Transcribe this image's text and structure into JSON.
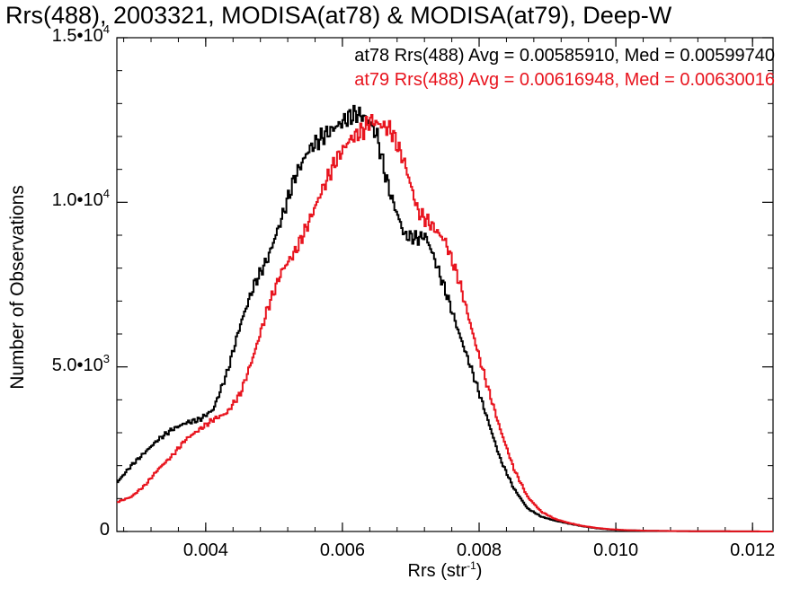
{
  "chart_data": {
    "type": "line",
    "title": "Rrs(488), 2003321, MODISA(at78) & MODISA(at79), Deep-W",
    "xlabel": "Rrs (str",
    "xlabel_exponent": "-1",
    "xlabel_close": ")",
    "ylabel": "Number of Observations",
    "xlim": [
      0.0027,
      0.0123
    ],
    "ylim": [
      0,
      15000
    ],
    "x_ticks": [
      0.004,
      0.006,
      0.008,
      0.01,
      0.012
    ],
    "x_tick_labels": [
      "0.004",
      "0.006",
      "0.008",
      "0.010",
      "0.012"
    ],
    "y_ticks": [
      {
        "value": 0,
        "mantissa": "0",
        "exponent": ""
      },
      {
        "value": 5000,
        "mantissa": "5.0•10",
        "exponent": "3"
      },
      {
        "value": 10000,
        "mantissa": "1.0•10",
        "exponent": "4"
      },
      {
        "value": 15000,
        "mantissa": "1.5•10",
        "exponent": "4"
      }
    ],
    "grid": false,
    "series": [
      {
        "color": "#000000",
        "label": "at78 Rrs(488) Avg = 0.00585910, Med = 0.00599740",
        "x": [
          0.0027,
          0.0029,
          0.0031,
          0.0033,
          0.0035,
          0.0037,
          0.0039,
          0.0041,
          0.0043,
          0.0045,
          0.0047,
          0.0049,
          0.0051,
          0.0053,
          0.0055,
          0.0057,
          0.0059,
          0.0061,
          0.0062,
          0.0063,
          0.0064,
          0.0065,
          0.0066,
          0.0067,
          0.0069,
          0.0071,
          0.0072,
          0.0073,
          0.0075,
          0.0077,
          0.0079,
          0.0081,
          0.0083,
          0.0085,
          0.0087,
          0.0089,
          0.0091,
          0.0093,
          0.0095,
          0.0097,
          0.0099,
          0.0101,
          0.0105,
          0.011,
          0.0115,
          0.0123
        ],
        "y": [
          1500,
          2000,
          2400,
          2800,
          3100,
          3300,
          3400,
          3700,
          4800,
          6300,
          7500,
          8300,
          9500,
          10800,
          11600,
          12000,
          12300,
          12600,
          12700,
          12600,
          12400,
          12000,
          11000,
          10200,
          9000,
          8900,
          9000,
          8500,
          7300,
          6000,
          4800,
          3500,
          2200,
          1300,
          700,
          450,
          330,
          240,
          160,
          100,
          60,
          40,
          20,
          10,
          5,
          0
        ]
      },
      {
        "color": "#e8141e",
        "label": "at79 Rrs(488) Avg = 0.00616948, Med = 0.00630016",
        "x": [
          0.0027,
          0.0029,
          0.0031,
          0.0033,
          0.0035,
          0.0037,
          0.0039,
          0.0041,
          0.0043,
          0.0045,
          0.0047,
          0.0049,
          0.0051,
          0.0053,
          0.0055,
          0.0057,
          0.0059,
          0.0061,
          0.0063,
          0.0064,
          0.0065,
          0.0066,
          0.0067,
          0.0069,
          0.0071,
          0.0073,
          0.0075,
          0.0077,
          0.0079,
          0.0081,
          0.0083,
          0.0085,
          0.0087,
          0.0089,
          0.0091,
          0.0093,
          0.0095,
          0.0097,
          0.0099,
          0.0101,
          0.0103,
          0.0105,
          0.011,
          0.0115,
          0.0123
        ],
        "y": [
          900,
          1050,
          1400,
          1900,
          2300,
          2800,
          3100,
          3400,
          3600,
          4200,
          5400,
          6800,
          7900,
          8500,
          9400,
          10400,
          11300,
          11900,
          12200,
          12500,
          12400,
          12300,
          12200,
          11200,
          9700,
          9300,
          8800,
          7600,
          6000,
          4500,
          3100,
          1900,
          1050,
          600,
          380,
          260,
          170,
          110,
          70,
          45,
          30,
          20,
          10,
          5,
          0
        ]
      }
    ]
  }
}
